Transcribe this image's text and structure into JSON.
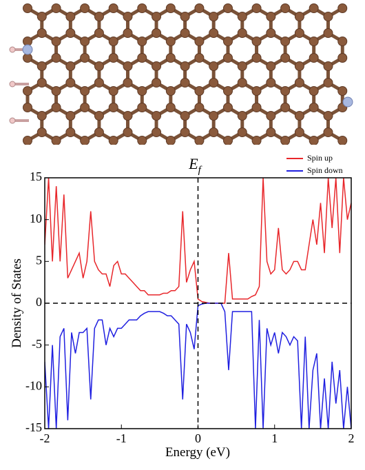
{
  "chart_data": {
    "type": "line",
    "annotation": "E",
    "annotation_subscript": "f",
    "xlabel": "Energy (eV)",
    "ylabel": "Density of States",
    "xlim": [
      -2,
      2
    ],
    "ylim": [
      -15,
      15
    ],
    "xticks": [
      -2,
      -1,
      0,
      1,
      2
    ],
    "yticks": [
      -15,
      -10,
      -5,
      0,
      5,
      10,
      15
    ],
    "reference_lines": {
      "x": 0,
      "y": 0
    },
    "legend": "upper right",
    "x": [
      -2,
      -1.95,
      -1.9,
      -1.85,
      -1.8,
      -1.75,
      -1.7,
      -1.65,
      -1.6,
      -1.55,
      -1.5,
      -1.45,
      -1.4,
      -1.35,
      -1.3,
      -1.25,
      -1.2,
      -1.15,
      -1.1,
      -1.05,
      -1,
      -0.95,
      -0.9,
      -0.85,
      -0.8,
      -0.75,
      -0.7,
      -0.65,
      -0.6,
      -0.55,
      -0.5,
      -0.45,
      -0.4,
      -0.35,
      -0.3,
      -0.25,
      -0.2,
      -0.15,
      -0.1,
      -0.05,
      0,
      0.05,
      0.1,
      0.15,
      0.2,
      0.25,
      0.3,
      0.35,
      0.4,
      0.45,
      0.5,
      0.55,
      0.6,
      0.65,
      0.7,
      0.75,
      0.8,
      0.85,
      0.9,
      0.95,
      1,
      1.05,
      1.1,
      1.15,
      1.2,
      1.25,
      1.3,
      1.35,
      1.4,
      1.45,
      1.5,
      1.55,
      1.6,
      1.65,
      1.7,
      1.75,
      1.8,
      1.85,
      1.9,
      1.95,
      2
    ],
    "series": [
      {
        "name": "Spin up",
        "color": "#e8262a",
        "values": [
          7,
          15,
          5,
          14,
          5,
          13,
          3,
          4,
          5,
          6,
          3,
          5,
          11,
          5,
          4,
          3.5,
          3.5,
          2,
          4.5,
          5,
          3.5,
          3.5,
          3,
          2.5,
          2,
          1.5,
          1.5,
          1,
          1,
          1,
          1,
          1.2,
          1.2,
          1.5,
          1.5,
          2,
          11,
          2.5,
          4,
          5,
          0.5,
          0.2,
          0.1,
          0,
          0,
          0,
          0,
          0,
          6,
          0.5,
          0.5,
          0.5,
          0.5,
          0.5,
          0.8,
          1,
          2,
          15,
          5,
          3.5,
          4,
          9,
          4,
          3.5,
          4,
          5,
          5,
          4,
          4,
          7,
          10,
          7,
          12,
          6,
          15,
          9,
          15,
          6,
          15,
          10,
          12
        ]
      },
      {
        "name": "Spin down",
        "color": "#1f1fe0",
        "values": [
          -7,
          -15,
          -5,
          -15,
          -4,
          -3,
          -14,
          -3.5,
          -6,
          -3.5,
          -3.5,
          -3,
          -11.5,
          -3,
          -2,
          -2,
          -5,
          -3,
          -4,
          -3,
          -3,
          -2.5,
          -2,
          -2,
          -2,
          -1.5,
          -1.2,
          -1,
          -1,
          -1,
          -1,
          -1.2,
          -1.5,
          -1.5,
          -2,
          -2.5,
          -11.5,
          -2.5,
          -3.5,
          -5.5,
          -0.3,
          -0.1,
          0,
          0,
          0,
          0,
          0,
          -1,
          -8,
          -1,
          -1,
          -1,
          -1,
          -1,
          -1,
          -15,
          -2,
          -15,
          -3,
          -5,
          -3.5,
          -6,
          -3.5,
          -4,
          -5,
          -4,
          -4.5,
          -15,
          -4,
          -15,
          -8,
          -6,
          -15,
          -9,
          -15,
          -7,
          -12,
          -8,
          -15,
          -10,
          -15
        ]
      }
    ]
  }
}
